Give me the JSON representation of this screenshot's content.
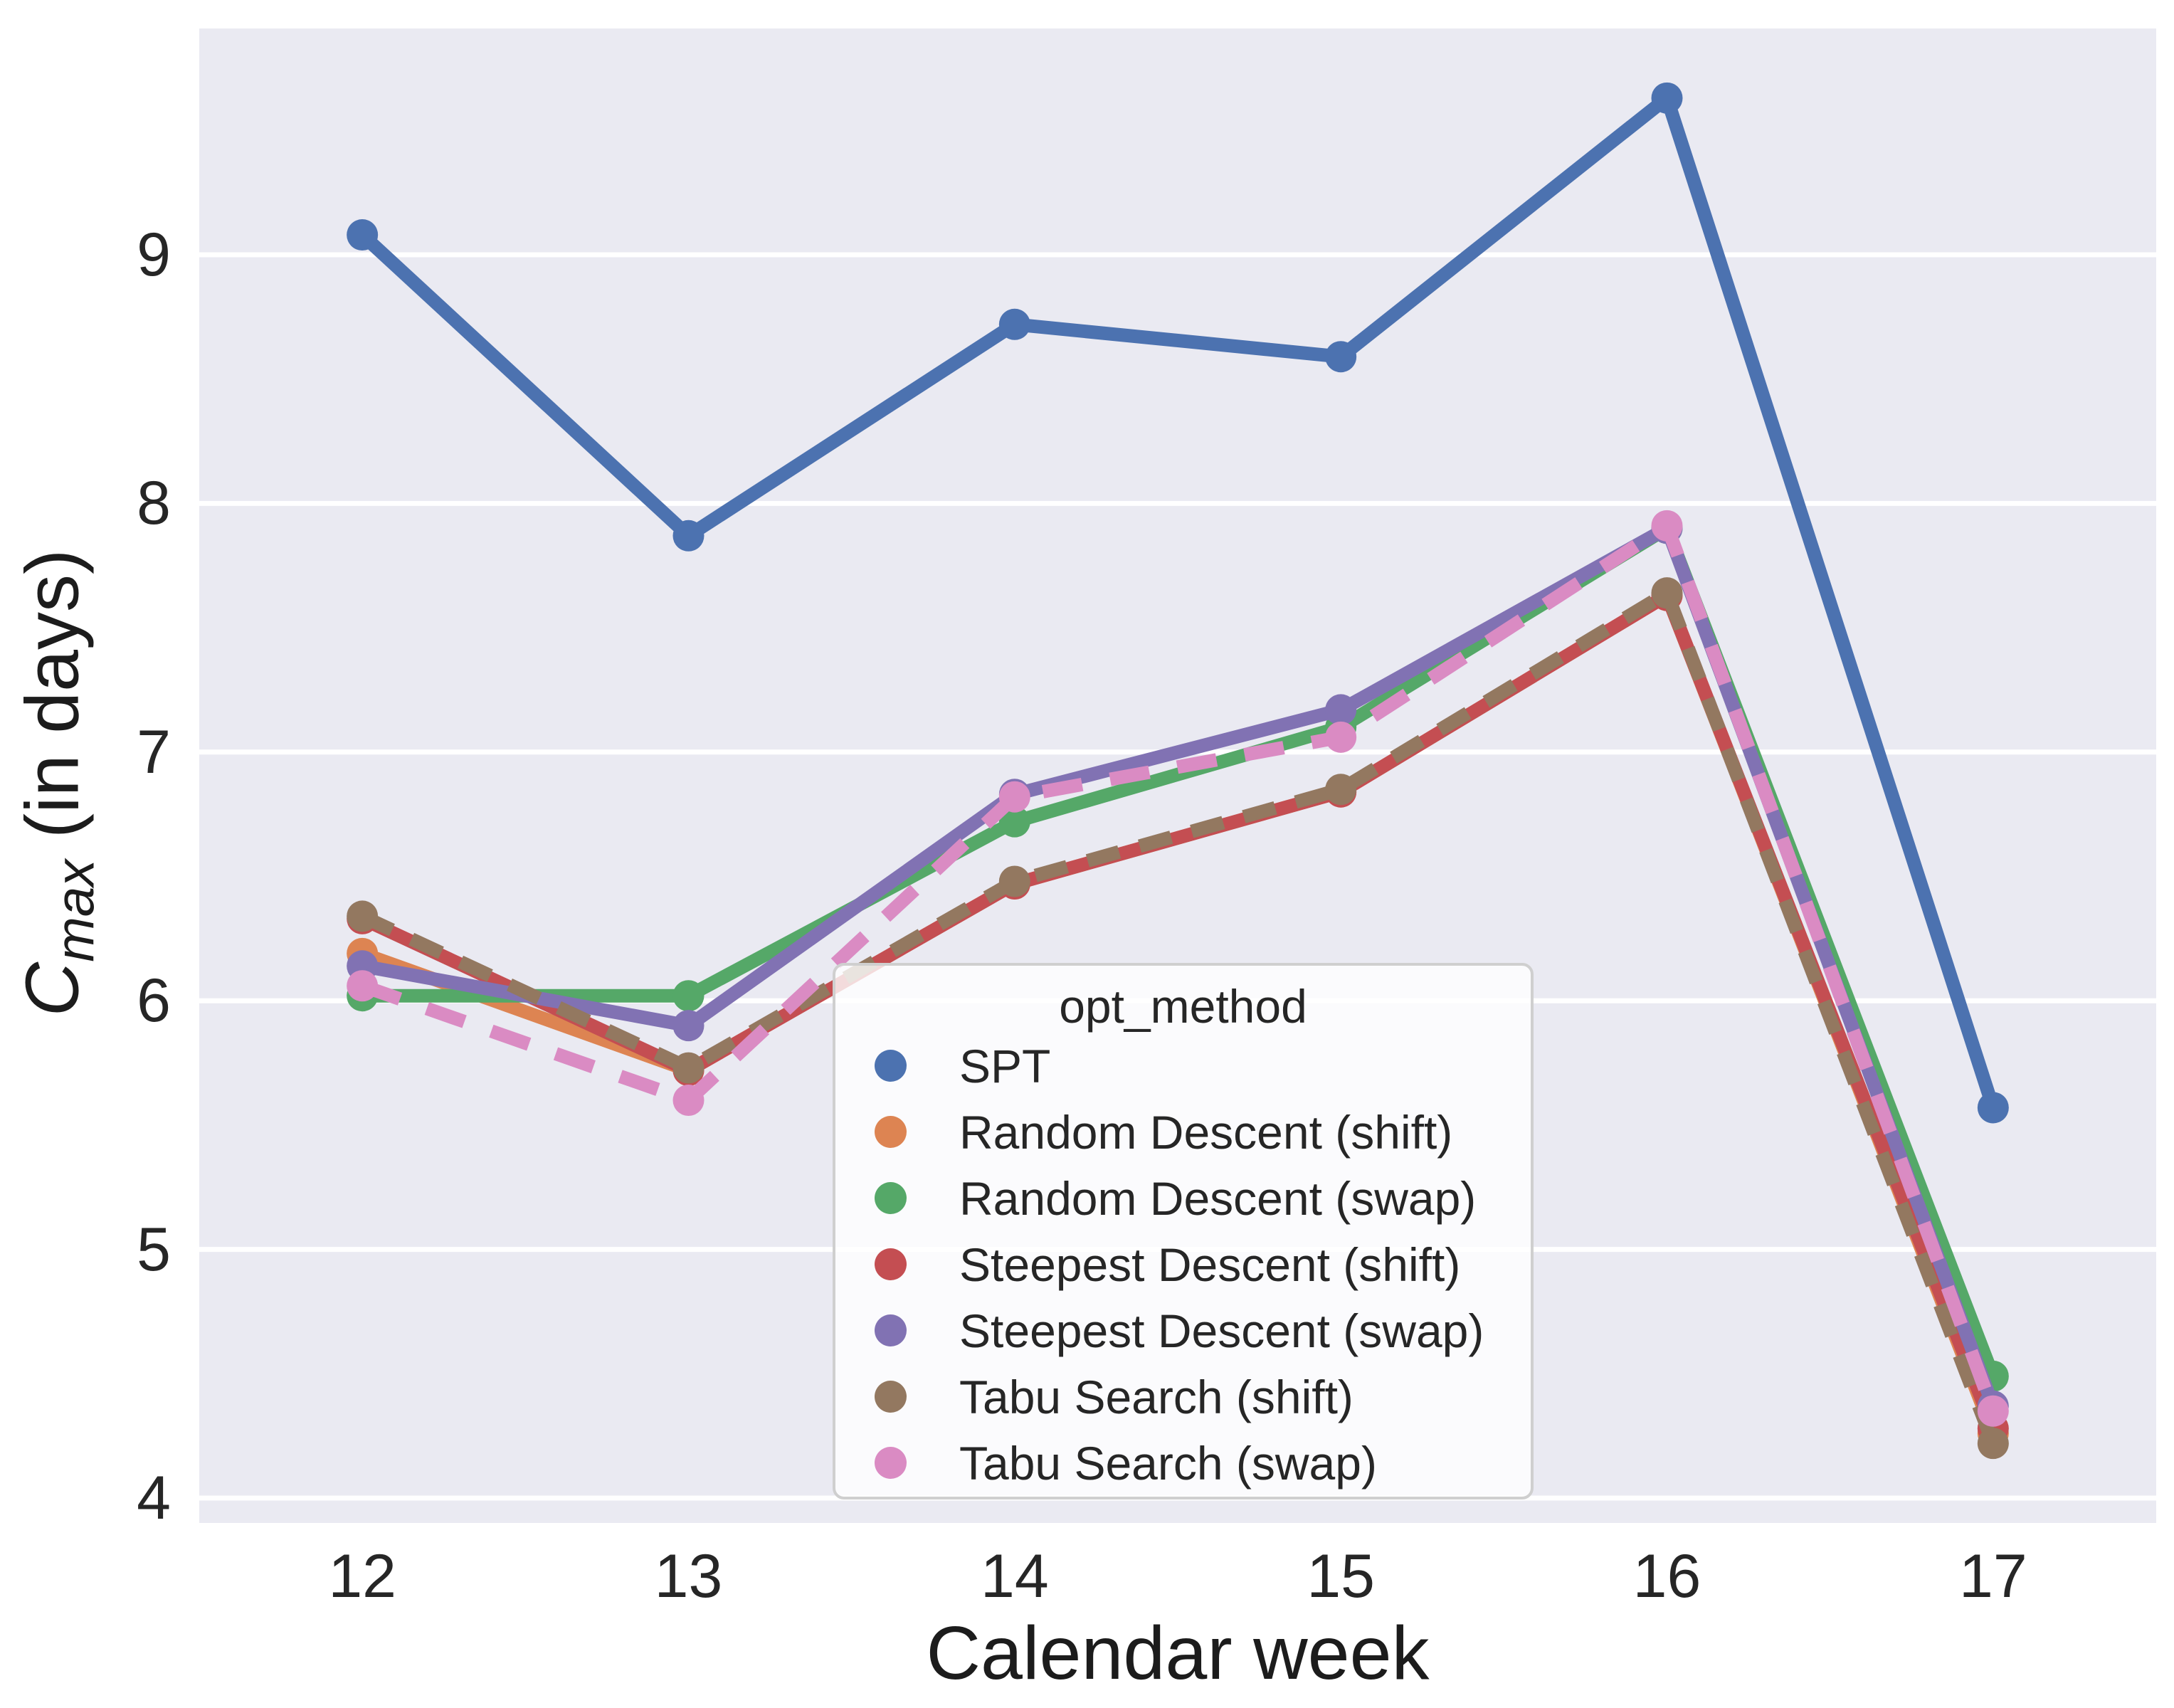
{
  "chart_data": {
    "type": "line",
    "x": [
      12,
      13,
      14,
      15,
      16,
      17
    ],
    "xticklabels": [
      "12",
      "13",
      "14",
      "15",
      "16",
      "17"
    ],
    "yticks": [
      4,
      5,
      6,
      7,
      8,
      9
    ],
    "yticklabels": [
      "4",
      "5",
      "6",
      "7",
      "8",
      "9"
    ],
    "xlabel": "Calendar week",
    "ylabel_math": {
      "base": "C",
      "sub": "max",
      "rest": " (in days)"
    },
    "xlim": [
      11.5,
      17.5
    ],
    "ylim": [
      3.9,
      9.91
    ],
    "grid": "horizontal white gridlines on light gray axes background",
    "legend": {
      "title": "opt_method",
      "position": "lower center-right inside axes"
    },
    "series": [
      {
        "name": "SPT",
        "color": "#4C72B0",
        "dash": "solid",
        "values": [
          9.08,
          7.87,
          8.72,
          8.59,
          9.63,
          5.57
        ]
      },
      {
        "name": "Random Descent (shift)",
        "color": "#DD8452",
        "dash": "solid",
        "values": [
          6.19,
          5.72,
          6.47,
          6.84,
          7.63,
          4.26
        ]
      },
      {
        "name": "Random Descent (swap)",
        "color": "#55A868",
        "dash": "solid",
        "values": [
          6.02,
          6.02,
          6.72,
          7.1,
          7.9,
          4.49
        ]
      },
      {
        "name": "Steepest Descent (shift)",
        "color": "#C44E52",
        "dash": "solid",
        "values": [
          6.33,
          5.72,
          6.47,
          6.84,
          7.63,
          4.28
        ]
      },
      {
        "name": "Steepest Descent (swap)",
        "color": "#8172B3",
        "dash": "solid",
        "values": [
          6.14,
          5.9,
          6.83,
          7.17,
          7.9,
          4.37
        ]
      },
      {
        "name": "Tabu Search (shift)",
        "color": "#937860",
        "dash": "dashed",
        "values": [
          6.34,
          5.73,
          6.48,
          6.85,
          7.64,
          4.22
        ]
      },
      {
        "name": "Tabu Search (swap)",
        "color": "#DA8BC3",
        "dash": "dashed",
        "values": [
          6.06,
          5.6,
          6.82,
          7.06,
          7.91,
          4.35
        ]
      }
    ],
    "style": {
      "plot_bg": "#EAEAF2",
      "grid_color": "#FFFFFF",
      "figure_bg": "#FFFFFF",
      "text_color": "#262626",
      "line_width": 19,
      "marker_radius": 22
    }
  }
}
